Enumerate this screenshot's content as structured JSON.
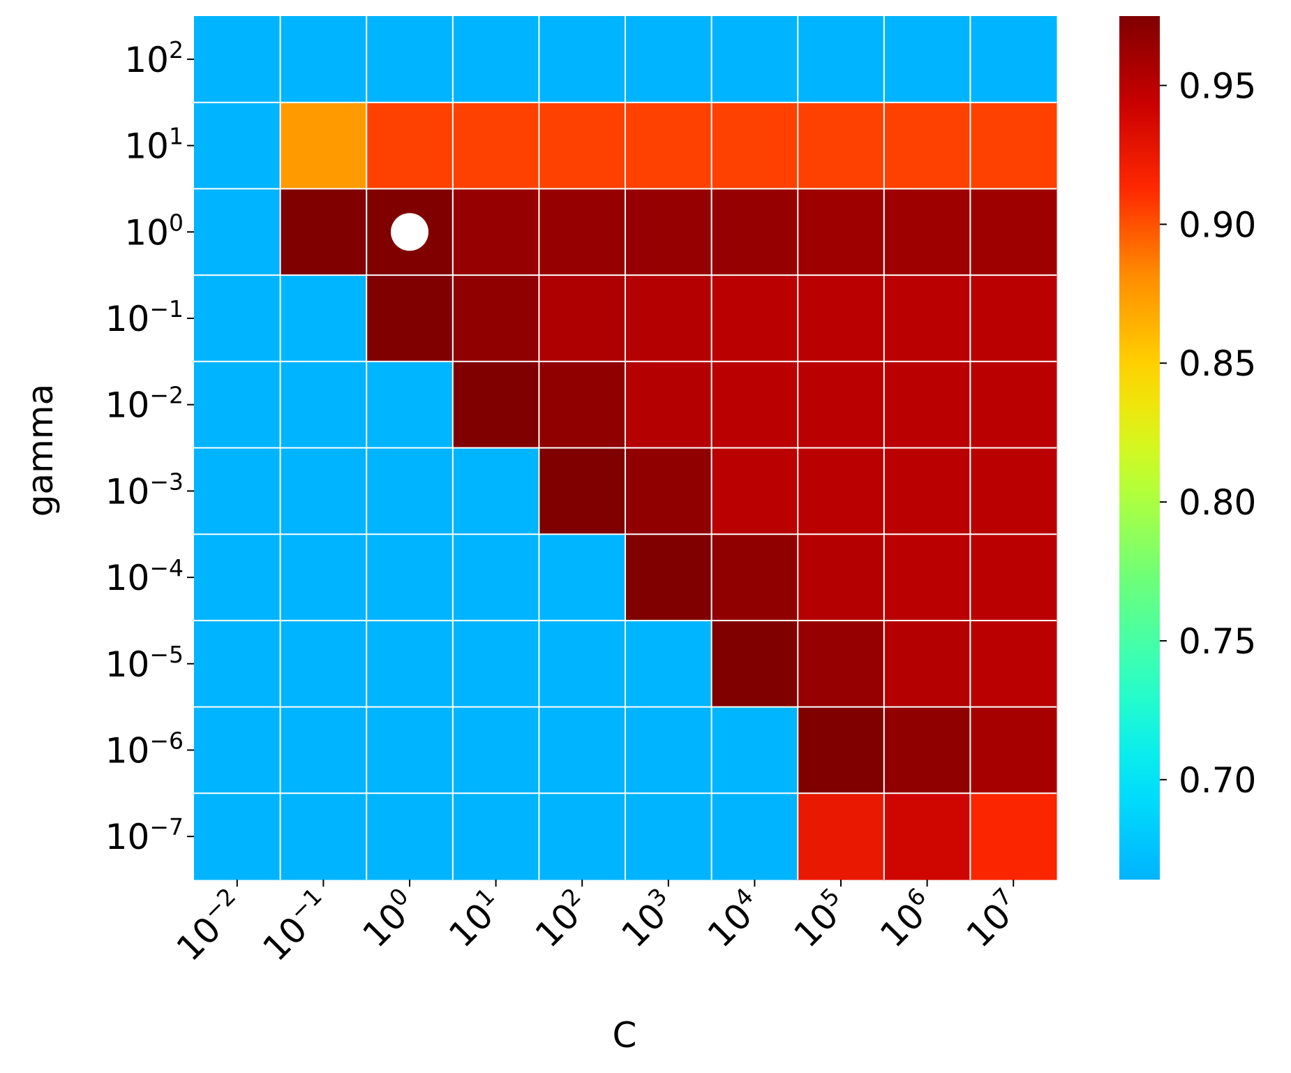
{
  "chart_data": {
    "type": "heatmap",
    "xlabel": "C",
    "ylabel": "gamma",
    "x_ticks": [
      {
        "base": "10",
        "exp": "−2"
      },
      {
        "base": "10",
        "exp": "−1"
      },
      {
        "base": "10",
        "exp": "0"
      },
      {
        "base": "10",
        "exp": "1"
      },
      {
        "base": "10",
        "exp": "2"
      },
      {
        "base": "10",
        "exp": "3"
      },
      {
        "base": "10",
        "exp": "4"
      },
      {
        "base": "10",
        "exp": "5"
      },
      {
        "base": "10",
        "exp": "6"
      },
      {
        "base": "10",
        "exp": "7"
      }
    ],
    "y_ticks": [
      {
        "base": "10",
        "exp": "2"
      },
      {
        "base": "10",
        "exp": "1"
      },
      {
        "base": "10",
        "exp": "0"
      },
      {
        "base": "10",
        "exp": "−1"
      },
      {
        "base": "10",
        "exp": "−2"
      },
      {
        "base": "10",
        "exp": "−3"
      },
      {
        "base": "10",
        "exp": "−4"
      },
      {
        "base": "10",
        "exp": "−5"
      },
      {
        "base": "10",
        "exp": "−6"
      },
      {
        "base": "10",
        "exp": "−7"
      }
    ],
    "x_values": [
      0.01,
      0.1,
      1,
      10,
      100,
      1000,
      10000,
      100000,
      1000000,
      10000000
    ],
    "y_values": [
      100,
      10,
      1,
      0.1,
      0.01,
      0.001,
      0.0001,
      1e-05,
      1e-06,
      1e-07
    ],
    "values": [
      [
        0.664,
        0.664,
        0.664,
        0.664,
        0.664,
        0.664,
        0.664,
        0.664,
        0.664,
        0.664
      ],
      [
        0.664,
        0.875,
        0.905,
        0.905,
        0.905,
        0.905,
        0.905,
        0.905,
        0.905,
        0.905
      ],
      [
        0.664,
        0.975,
        0.975,
        0.965,
        0.965,
        0.965,
        0.965,
        0.962,
        0.962,
        0.962
      ],
      [
        0.664,
        0.665,
        0.975,
        0.968,
        0.955,
        0.952,
        0.95,
        0.95,
        0.95,
        0.95
      ],
      [
        0.664,
        0.664,
        0.665,
        0.975,
        0.968,
        0.952,
        0.95,
        0.95,
        0.95,
        0.95
      ],
      [
        0.664,
        0.664,
        0.664,
        0.665,
        0.975,
        0.968,
        0.95,
        0.95,
        0.95,
        0.95
      ],
      [
        0.664,
        0.664,
        0.664,
        0.664,
        0.665,
        0.975,
        0.968,
        0.952,
        0.95,
        0.95
      ],
      [
        0.664,
        0.664,
        0.664,
        0.664,
        0.664,
        0.665,
        0.975,
        0.965,
        0.952,
        0.95
      ],
      [
        0.664,
        0.664,
        0.664,
        0.664,
        0.664,
        0.664,
        0.665,
        0.975,
        0.968,
        0.958
      ],
      [
        0.664,
        0.664,
        0.664,
        0.664,
        0.664,
        0.664,
        0.664,
        0.925,
        0.94,
        0.915
      ]
    ],
    "colorbar": {
      "range": [
        0.664,
        0.975
      ],
      "ticks": [
        "0.70",
        "0.75",
        "0.80",
        "0.85",
        "0.90",
        "0.95"
      ],
      "colormap": "jet"
    },
    "best_point": {
      "C": 1,
      "gamma": 1,
      "marker_color": "#ffffff"
    },
    "grid_line_color": "#ffffff"
  }
}
